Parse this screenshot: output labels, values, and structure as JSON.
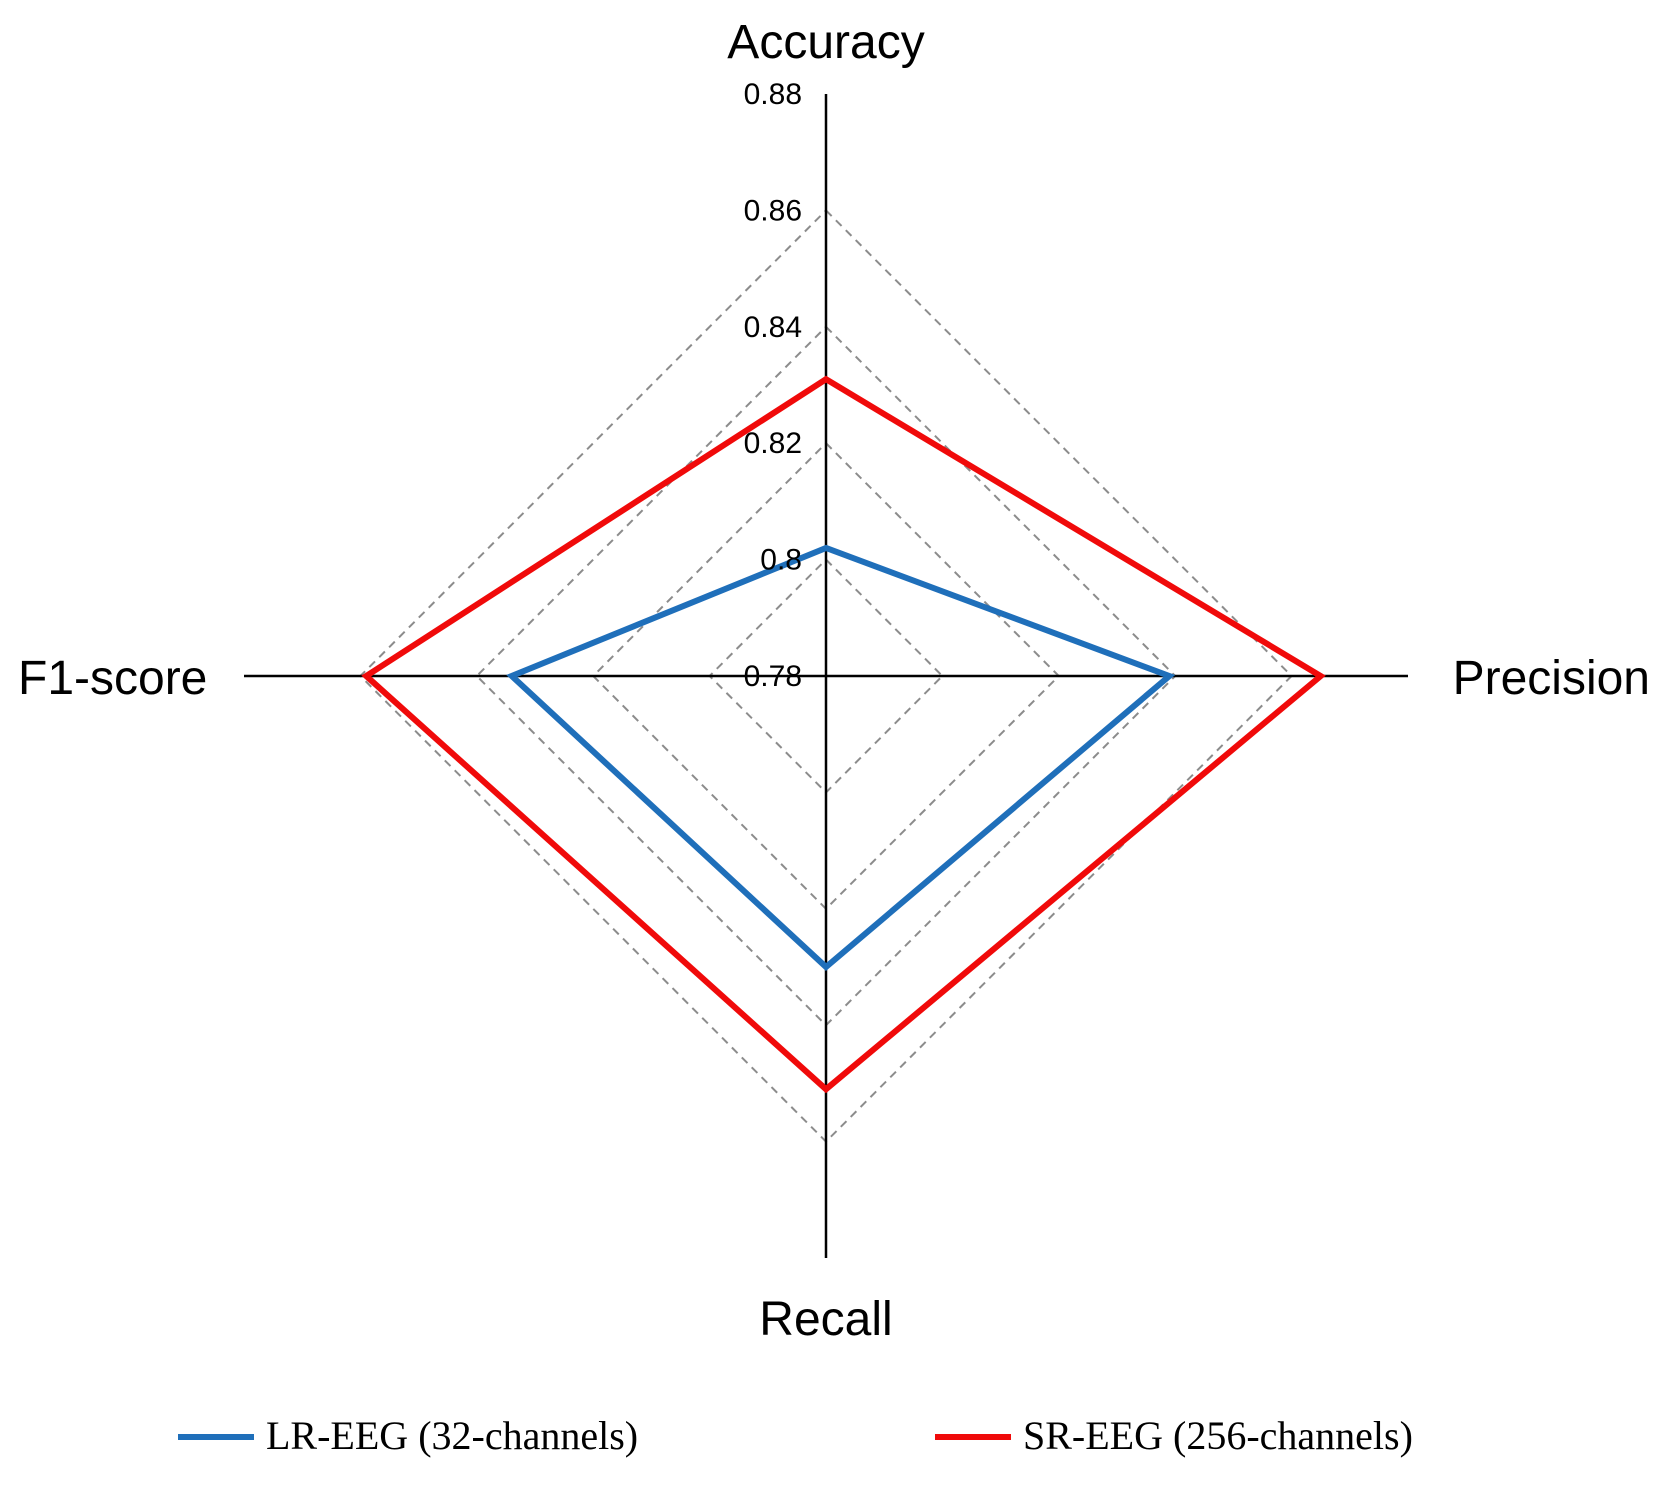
{
  "chart_data": {
    "type": "radar",
    "axes": [
      "Accuracy",
      "Precision",
      "Recall",
      "F1-score"
    ],
    "r_ticks": [
      "0.78",
      "0.8",
      "0.82",
      "0.84",
      "0.86",
      "0.88"
    ],
    "r_min": 0.78,
    "r_max": 0.88,
    "grid": true,
    "legend_position": "bottom",
    "series": [
      {
        "name": "LR-EEG (32-channels)",
        "color": "#1f6fba",
        "values": [
          0.802,
          0.839,
          0.83,
          0.834
        ]
      },
      {
        "name": "SR-EEG (256-channels)",
        "color": "#f00a0a",
        "values": [
          0.831,
          0.865,
          0.851,
          0.859
        ]
      }
    ]
  }
}
